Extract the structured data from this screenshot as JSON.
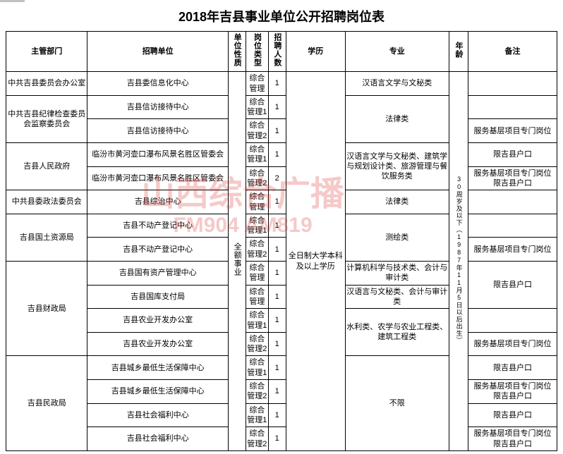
{
  "title": "2018年吉县事业单位公开招聘岗位表",
  "watermark": {
    "line1": "山西综合广播",
    "line2": "FM904  AM819"
  },
  "headers": {
    "dept": "主管部门",
    "unit": "招聘单位",
    "type": "单位性质",
    "cat": "岗位类型",
    "num": "招聘人数",
    "edu": "学历",
    "major": "专业",
    "age": "年龄",
    "note": "备注"
  },
  "unit_type": "全额事业",
  "education": "全日制大学本科及以上学历",
  "age_req": "30周岁及以下（1987年11月5日以后出生）",
  "rows": [
    {
      "dept": "中共吉县委员会办公室",
      "unit": "吉县委信息化中心",
      "cat": "综合管理",
      "num": "1",
      "major": "汉语言文学与文秘类",
      "note": ""
    },
    {
      "dept": "中共吉县纪律检查委员会监察委员会",
      "unit": "吉县信访接待中心",
      "cat": "综合管理1",
      "num": "1",
      "major": "法律类",
      "majorspan": 2,
      "note": "",
      "deptspan": 2
    },
    {
      "unit": "吉县信访接待中心",
      "cat": "综合管理2",
      "num": "1",
      "note": "服务基层项目专门岗位"
    },
    {
      "dept": "吉县人民政府",
      "unit": "临汾市黄河壶口瀑布风景名胜区管委会",
      "cat": "综合管理1",
      "num": "1",
      "major": "汉语言文学与文秘类、建筑学与规划设计类、旅游管理与餐饮服务类",
      "majorspan": 2,
      "note": "限吉县户口",
      "deptspan": 2
    },
    {
      "unit": "临汾市黄河壶口瀑布风景名胜区管委会",
      "cat": "综合管理2",
      "num": "2",
      "note": "服务基层项目专门岗位\n限吉县户口"
    },
    {
      "dept": "中共县委政法委员会",
      "unit": "吉县综治中心",
      "cat": "综合管理",
      "num": "1",
      "major": "法律类",
      "note": ""
    },
    {
      "dept": "吉县国土资源局",
      "unit": "吉县不动产登记中心",
      "cat": "综合管理1",
      "num": "1",
      "major": "测绘类",
      "majorspan": 2,
      "note": "",
      "deptspan": 2
    },
    {
      "unit": "吉县不动产登记中心",
      "cat": "综合管理2",
      "num": "1",
      "note": "服务基层项目专门岗位"
    },
    {
      "dept": "吉县财政局",
      "unit": "吉县国有资产管理中心",
      "cat": "综合管理",
      "num": "1",
      "major": "计算机科学与技术类、会计与审计类",
      "note": "限吉县户口",
      "notespan": 2,
      "deptspan": 4
    },
    {
      "unit": "吉县国库支付局",
      "cat": "综合管理",
      "num": "1",
      "major": "汉语言与文秘类、会计与审计类"
    },
    {
      "unit": "吉县农业开发办公室",
      "cat": "综合管理1",
      "num": "1",
      "major": "水利类、农学与农业工程类、建筑工程类",
      "majorspan": 2,
      "note": ""
    },
    {
      "unit": "吉县农业开发办公室",
      "cat": "综合管理2",
      "num": "1",
      "note": "服务基层项目专门岗位"
    },
    {
      "dept": "吉县民政局",
      "unit": "吉县城乡最低生活保障中心",
      "cat": "综合管理1",
      "num": "1",
      "major": "不限",
      "majorspan": 4,
      "note": "限吉县户口",
      "deptspan": 4
    },
    {
      "unit": "吉县城乡最低生活保障中心",
      "cat": "综合管理2",
      "num": "1",
      "note": "服务基层项目专门岗位\n限吉县户口"
    },
    {
      "unit": "吉县社会福利中心",
      "cat": "综合管理1",
      "num": "1",
      "note": "限吉县户口"
    },
    {
      "unit": "吉县社会福利中心",
      "cat": "综合管理2",
      "num": "1",
      "note": "服务基层项目专门岗位\n限吉县户口"
    }
  ],
  "total_rows": 16
}
